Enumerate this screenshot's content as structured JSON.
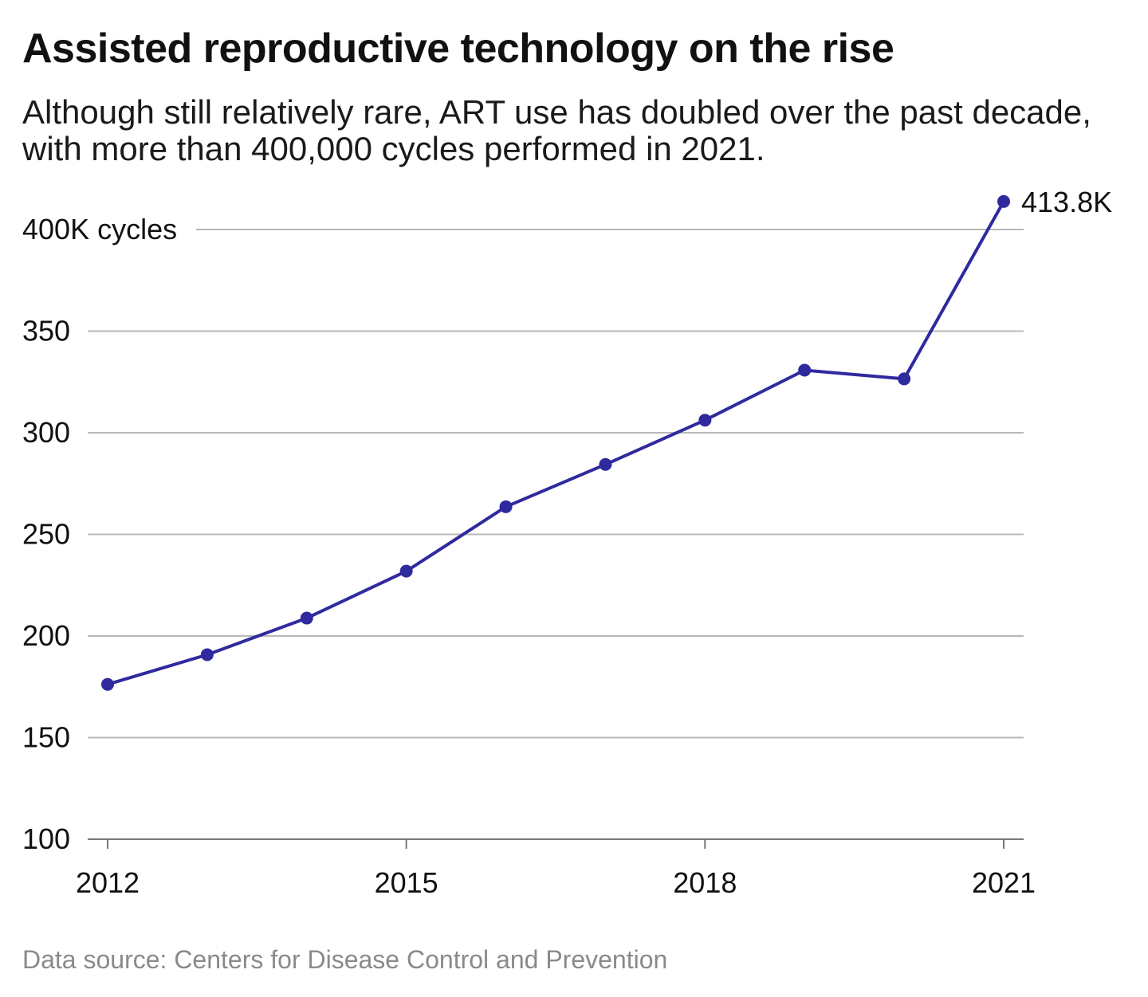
{
  "title": "Assisted reproductive technology on the rise",
  "subtitle": "Although still relatively rare, ART use has doubled over the past decade, with more than 400,000 cycles performed in 2021.",
  "source": "Data source: Centers for Disease Control and Prevention",
  "colors": {
    "line": "#2f2a9e",
    "grid": "#b8b8b8",
    "axis": "#777777",
    "text": "#111111",
    "source": "#8a8a8a"
  },
  "chart_data": {
    "type": "line",
    "title": "Assisted reproductive technology on the rise",
    "xlabel": "",
    "ylabel": "",
    "x": [
      2012,
      2013,
      2014,
      2015,
      2016,
      2017,
      2018,
      2019,
      2020,
      2021
    ],
    "y_ticks": [
      100,
      150,
      200,
      250,
      300,
      350,
      400
    ],
    "y_tick_labels": [
      "100",
      "150",
      "200",
      "250",
      "300",
      "350",
      "400K cycles"
    ],
    "x_ticks": [
      2012,
      2015,
      2018,
      2021
    ],
    "x_tick_labels": [
      "2012",
      "2015",
      "2018",
      "2021"
    ],
    "ylim": [
      100,
      400
    ],
    "xlim": [
      2012,
      2021
    ],
    "grid": true,
    "series": [
      {
        "values": [
          176.2,
          190.8,
          208.8,
          231.9,
          263.6,
          284.4,
          306.2,
          330.8,
          326.5,
          413.8
        ]
      }
    ],
    "annotations": [
      {
        "x": 2021,
        "y": 413.8,
        "text": "413.8K"
      }
    ]
  }
}
